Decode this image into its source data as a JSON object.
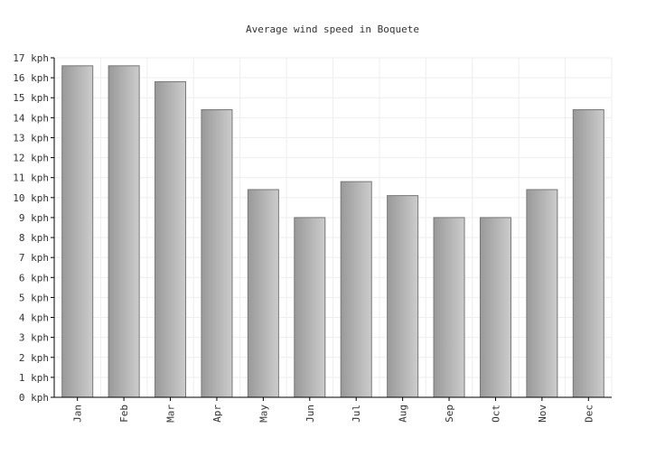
{
  "chart_data": {
    "type": "bar",
    "title": "Average wind speed in Boquete",
    "categories": [
      "Jan",
      "Feb",
      "Mar",
      "Apr",
      "May",
      "Jun",
      "Jul",
      "Aug",
      "Sep",
      "Oct",
      "Nov",
      "Dec"
    ],
    "values": [
      16.6,
      16.6,
      15.8,
      14.4,
      10.4,
      9.0,
      10.8,
      10.1,
      9.0,
      9.0,
      10.4,
      14.4
    ],
    "unit": "kph",
    "ylim": [
      0,
      17
    ],
    "yticks": [
      "0 kph",
      "1 kph",
      "2 kph",
      "3 kph",
      "4 kph",
      "5 kph",
      "6 kph",
      "7 kph",
      "8 kph",
      "9 kph",
      "10 kph",
      "11 kph",
      "12 kph",
      "13 kph",
      "14 kph",
      "15 kph",
      "16 kph",
      "17 kph"
    ],
    "grid": true,
    "bar_color": "#aaaaaa"
  }
}
